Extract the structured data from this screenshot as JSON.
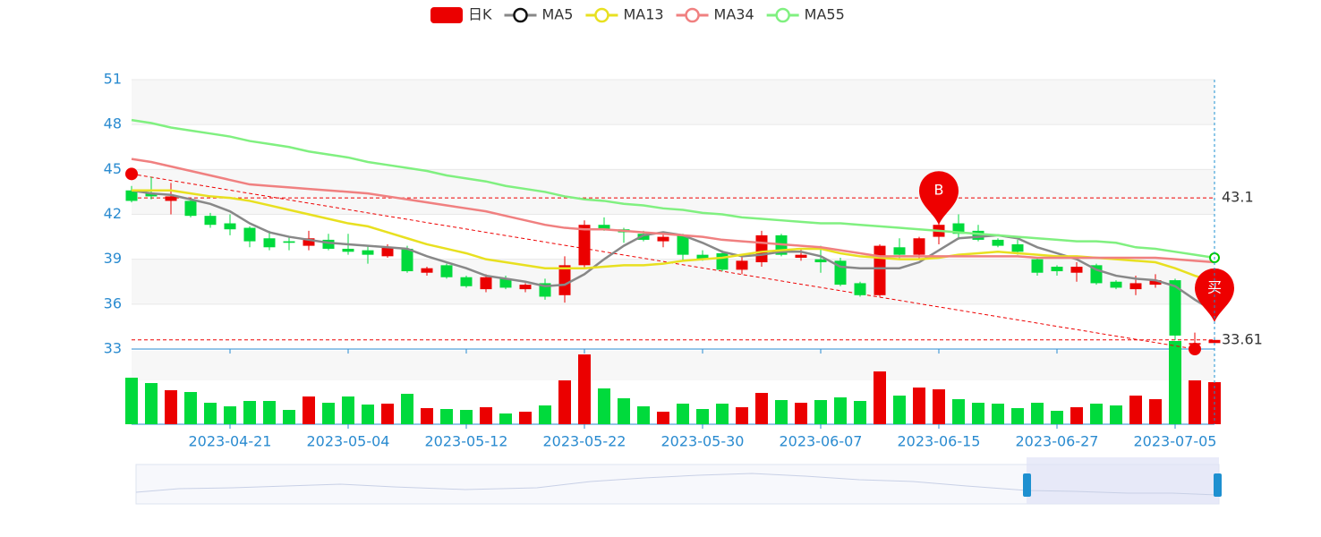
{
  "chart_data": {
    "type": "candlestick",
    "categories": [
      null,
      null,
      null,
      null,
      null,
      "2023-04-21",
      null,
      null,
      null,
      null,
      null,
      "2023-05-04",
      null,
      null,
      null,
      null,
      null,
      "2023-05-12",
      null,
      null,
      null,
      null,
      null,
      "2023-05-22",
      null,
      null,
      null,
      null,
      null,
      "2023-05-30",
      null,
      null,
      null,
      null,
      null,
      "2023-06-07",
      null,
      null,
      null,
      null,
      null,
      "2023-06-15",
      null,
      null,
      null,
      null,
      null,
      "2023-06-27",
      null,
      null,
      null,
      null,
      null,
      "2023-07-05",
      null,
      null
    ],
    "ylim": [
      33,
      51
    ],
    "yticks": [
      33,
      36,
      39,
      42,
      45,
      48,
      51
    ],
    "grid": true,
    "up_color": "#eb0000",
    "down_color": "#00da3c",
    "series": [
      {
        "name": "日K",
        "color": "#eb0000",
        "values": [
          [
            43.6,
            42.9,
            42.8,
            43.9
          ],
          [
            43.4,
            43.2,
            43.0,
            44.5
          ],
          [
            42.9,
            43.2,
            42.0,
            44.1
          ],
          [
            42.9,
            41.9,
            41.8,
            43.0
          ],
          [
            41.9,
            41.3,
            41.1,
            42.1
          ],
          [
            41.4,
            41.0,
            40.6,
            42.0
          ],
          [
            41.1,
            40.2,
            39.8,
            41.2
          ],
          [
            40.4,
            39.8,
            39.6,
            40.9
          ],
          [
            40.2,
            40.1,
            39.6,
            40.5
          ],
          [
            39.9,
            40.4,
            39.6,
            40.9
          ],
          [
            40.3,
            39.7,
            39.6,
            40.7
          ],
          [
            39.7,
            39.5,
            39.3,
            40.7
          ],
          [
            39.6,
            39.3,
            38.7,
            39.9
          ],
          [
            39.2,
            39.8,
            39.1,
            40.0
          ],
          [
            39.7,
            38.2,
            38.1,
            39.9
          ],
          [
            38.1,
            38.4,
            37.9,
            38.5
          ],
          [
            38.6,
            37.8,
            37.7,
            38.7
          ],
          [
            37.8,
            37.2,
            37.1,
            37.9
          ],
          [
            37.0,
            37.8,
            36.8,
            38.0
          ],
          [
            37.7,
            37.1,
            37.0,
            37.9
          ],
          [
            37.0,
            37.3,
            36.8,
            37.4
          ],
          [
            37.4,
            36.5,
            36.3,
            37.7
          ],
          [
            36.6,
            38.6,
            36.1,
            39.2
          ],
          [
            38.6,
            41.3,
            38.4,
            41.6
          ],
          [
            41.3,
            41.0,
            40.9,
            41.8
          ],
          [
            41.0,
            40.8,
            40.1,
            41.1
          ],
          [
            40.7,
            40.3,
            40.2,
            40.9
          ],
          [
            40.2,
            40.5,
            39.8,
            40.7
          ],
          [
            40.6,
            39.3,
            38.9,
            40.7
          ],
          [
            39.3,
            39.0,
            38.9,
            39.6
          ],
          [
            39.4,
            38.3,
            38.2,
            39.6
          ],
          [
            38.3,
            38.9,
            38.0,
            39.2
          ],
          [
            38.8,
            40.6,
            38.5,
            40.9
          ],
          [
            40.6,
            39.3,
            39.2,
            40.7
          ],
          [
            39.1,
            39.3,
            38.9,
            39.7
          ],
          [
            39.0,
            38.8,
            38.1,
            39.9
          ],
          [
            38.9,
            37.3,
            37.2,
            39.1
          ],
          [
            37.4,
            36.6,
            36.5,
            37.5
          ],
          [
            36.6,
            39.9,
            36.5,
            40.0
          ],
          [
            39.8,
            39.3,
            39.0,
            40.4
          ],
          [
            39.3,
            40.4,
            39.0,
            40.5
          ],
          [
            40.5,
            41.3,
            40.0,
            41.7
          ],
          [
            41.4,
            40.7,
            40.3,
            42.0
          ],
          [
            40.9,
            40.3,
            40.2,
            41.3
          ],
          [
            40.3,
            39.9,
            39.8,
            40.4
          ],
          [
            40.0,
            39.5,
            39.3,
            40.3
          ],
          [
            39.0,
            38.1,
            37.9,
            39.1
          ],
          [
            38.5,
            38.2,
            37.9,
            38.6
          ],
          [
            38.1,
            38.5,
            37.5,
            38.8
          ],
          [
            38.6,
            37.4,
            37.3,
            38.7
          ],
          [
            37.5,
            37.1,
            37.0,
            37.6
          ],
          [
            37.0,
            37.4,
            36.6,
            37.9
          ],
          [
            37.3,
            37.6,
            37.1,
            38.0
          ],
          [
            37.6,
            33.9,
            33.6,
            37.7
          ],
          [
            33.3,
            33.4,
            33.2,
            34.1
          ],
          [
            33.4,
            33.61,
            33.3,
            33.8
          ]
        ]
      },
      {
        "name": "MA5",
        "color": "#888888",
        "values": [
          43.6,
          43.4,
          43.3,
          43.0,
          42.7,
          42.2,
          41.4,
          40.8,
          40.5,
          40.3,
          40.1,
          40.0,
          39.9,
          39.8,
          39.7,
          39.2,
          38.8,
          38.4,
          37.9,
          37.7,
          37.5,
          37.2,
          37.3,
          38.0,
          39.0,
          39.9,
          40.6,
          40.8,
          40.6,
          40.1,
          39.5,
          39.2,
          39.3,
          39.5,
          39.5,
          39.2,
          38.5,
          38.4,
          38.4,
          38.4,
          38.8,
          39.6,
          40.4,
          40.5,
          40.6,
          40.4,
          39.8,
          39.4,
          39.0,
          38.3,
          37.9,
          37.7,
          37.6,
          37.2,
          36.3,
          35.5
        ]
      },
      {
        "name": "MA13",
        "color": "#e8e020",
        "values": [
          43.6,
          43.6,
          43.6,
          43.4,
          43.2,
          43.1,
          42.9,
          42.6,
          42.3,
          42.0,
          41.7,
          41.4,
          41.2,
          40.8,
          40.4,
          40.0,
          39.7,
          39.4,
          39.0,
          38.8,
          38.6,
          38.4,
          38.4,
          38.4,
          38.5,
          38.6,
          38.6,
          38.7,
          38.9,
          39.0,
          39.1,
          39.3,
          39.5,
          39.6,
          39.7,
          39.7,
          39.4,
          39.2,
          39.1,
          39.0,
          39.0,
          39.1,
          39.3,
          39.4,
          39.5,
          39.4,
          39.3,
          39.2,
          39.2,
          39.1,
          39.0,
          38.9,
          38.8,
          38.4,
          37.9,
          37.5
        ]
      },
      {
        "name": "MA34",
        "color": "#f08080",
        "values": [
          45.7,
          45.5,
          45.2,
          44.9,
          44.6,
          44.3,
          44.0,
          43.9,
          43.8,
          43.7,
          43.6,
          43.5,
          43.4,
          43.2,
          43.0,
          42.8,
          42.6,
          42.4,
          42.2,
          41.9,
          41.6,
          41.3,
          41.1,
          41.0,
          41.0,
          40.9,
          40.8,
          40.7,
          40.6,
          40.5,
          40.3,
          40.2,
          40.1,
          40.0,
          39.9,
          39.8,
          39.6,
          39.4,
          39.2,
          39.2,
          39.2,
          39.2,
          39.2,
          39.2,
          39.2,
          39.2,
          39.1,
          39.1,
          39.1,
          39.1,
          39.1,
          39.1,
          39.1,
          39.0,
          38.9,
          38.8
        ]
      },
      {
        "name": "MA55",
        "color": "#80f080",
        "values": [
          48.3,
          48.1,
          47.8,
          47.6,
          47.4,
          47.2,
          46.9,
          46.7,
          46.5,
          46.2,
          46.0,
          45.8,
          45.5,
          45.3,
          45.1,
          44.9,
          44.6,
          44.4,
          44.2,
          43.9,
          43.7,
          43.5,
          43.2,
          43.0,
          42.9,
          42.7,
          42.6,
          42.4,
          42.3,
          42.1,
          42.0,
          41.8,
          41.7,
          41.6,
          41.5,
          41.4,
          41.4,
          41.3,
          41.2,
          41.1,
          41.0,
          40.9,
          40.8,
          40.7,
          40.6,
          40.5,
          40.4,
          40.3,
          40.2,
          40.2,
          40.1,
          39.8,
          39.7,
          39.5,
          39.3,
          39.1
        ]
      }
    ],
    "volume": [
      52,
      46,
      38,
      36,
      24,
      20,
      26,
      26,
      16,
      31,
      24,
      31,
      22,
      23,
      34,
      18,
      17,
      16,
      19,
      12,
      14,
      21,
      49,
      78,
      40,
      29,
      20,
      14,
      23,
      17,
      23,
      19,
      35,
      27,
      24,
      27,
      30,
      26,
      59,
      32,
      41,
      39,
      28,
      24,
      23,
      18,
      24,
      15,
      19,
      23,
      21,
      32,
      28,
      93,
      49,
      47
    ],
    "hlines": [
      43.1,
      33.61
    ],
    "trend_points": [
      {
        "at": 0,
        "value": 44.7
      },
      {
        "at": 54,
        "value": 33.0
      }
    ],
    "pins": [
      {
        "at": 41,
        "value": 41.3,
        "label": "B"
      },
      {
        "at": 55,
        "value": 34.8,
        "label": "买"
      }
    ]
  }
}
